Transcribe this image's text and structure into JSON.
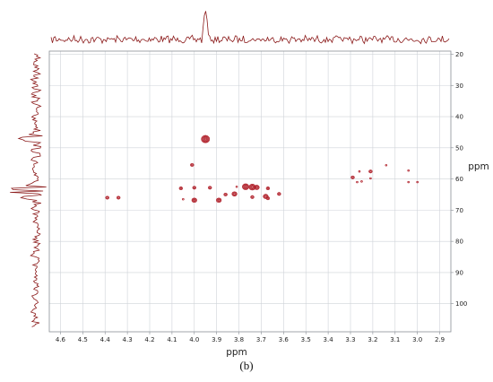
{
  "caption": "(b)",
  "colors": {
    "contour": "#b0202a",
    "trace": "#8b1a1a",
    "grid": "#cfd3d8",
    "frame": "#8a8f96",
    "text": "#222222"
  },
  "chart_data": {
    "type": "scatter",
    "title": "",
    "xlabel": "ppm",
    "ylabel": "ppm",
    "xlim": [
      4.65,
      2.85
    ],
    "ylim": [
      19,
      109
    ],
    "x_ticks": [
      4.6,
      4.5,
      4.4,
      4.3,
      4.2,
      4.1,
      4.0,
      3.9,
      3.8,
      3.7,
      3.6,
      3.5,
      3.4,
      3.3,
      3.2,
      3.1,
      3.0,
      2.9
    ],
    "x_tick_labels": [
      "4.6",
      "4.5",
      "4.4",
      "4.3",
      "4.2",
      "4.1",
      "4.0",
      "3.9",
      "3.8",
      "3.7",
      "3.6",
      "3.5",
      "3.4",
      "3.3",
      "3.2",
      "3.1",
      "3.0",
      "2.9"
    ],
    "y_ticks": [
      20,
      30,
      40,
      50,
      60,
      70,
      80,
      90,
      100
    ],
    "y_tick_labels": [
      "20",
      "30",
      "40",
      "50",
      "60",
      "70",
      "80",
      "90",
      "100"
    ],
    "grid": true,
    "axis_orientation": "x decreasing left-to-right; y increasing downward; y tick labels on right",
    "top_projection": {
      "baseline_label": "",
      "main_peak_x": 3.95
    },
    "left_projection": {
      "main_peaks_y": [
        47,
        63,
        65
      ]
    },
    "peaks": [
      {
        "x": 3.95,
        "y": 47.2,
        "intensity": 4
      },
      {
        "x": 4.01,
        "y": 55.5,
        "intensity": 1
      },
      {
        "x": 4.39,
        "y": 66.0,
        "intensity": 1
      },
      {
        "x": 4.34,
        "y": 66.0,
        "intensity": 1
      },
      {
        "x": 4.06,
        "y": 63.0,
        "intensity": 1
      },
      {
        "x": 4.05,
        "y": 66.5,
        "intensity": 0
      },
      {
        "x": 4.0,
        "y": 62.8,
        "intensity": 1
      },
      {
        "x": 4.0,
        "y": 66.8,
        "intensity": 2
      },
      {
        "x": 3.93,
        "y": 62.8,
        "intensity": 1
      },
      {
        "x": 3.89,
        "y": 66.8,
        "intensity": 2
      },
      {
        "x": 3.86,
        "y": 65.0,
        "intensity": 1
      },
      {
        "x": 3.82,
        "y": 64.8,
        "intensity": 2
      },
      {
        "x": 3.81,
        "y": 62.5,
        "intensity": 0
      },
      {
        "x": 3.77,
        "y": 62.5,
        "intensity": 3
      },
      {
        "x": 3.74,
        "y": 62.6,
        "intensity": 3
      },
      {
        "x": 3.72,
        "y": 62.7,
        "intensity": 2
      },
      {
        "x": 3.74,
        "y": 65.8,
        "intensity": 1
      },
      {
        "x": 3.67,
        "y": 63.0,
        "intensity": 1
      },
      {
        "x": 3.68,
        "y": 65.6,
        "intensity": 2
      },
      {
        "x": 3.67,
        "y": 66.2,
        "intensity": 1
      },
      {
        "x": 3.62,
        "y": 64.8,
        "intensity": 1
      },
      {
        "x": 3.29,
        "y": 59.5,
        "intensity": 1
      },
      {
        "x": 3.27,
        "y": 61.0,
        "intensity": 0
      },
      {
        "x": 3.26,
        "y": 57.6,
        "intensity": 0
      },
      {
        "x": 3.25,
        "y": 60.8,
        "intensity": 0
      },
      {
        "x": 3.21,
        "y": 57.6,
        "intensity": 1
      },
      {
        "x": 3.21,
        "y": 59.8,
        "intensity": 0
      },
      {
        "x": 3.14,
        "y": 55.6,
        "intensity": 0
      },
      {
        "x": 3.04,
        "y": 57.3,
        "intensity": 0
      },
      {
        "x": 3.04,
        "y": 61.0,
        "intensity": 0
      },
      {
        "x": 3.0,
        "y": 61.0,
        "intensity": 0
      }
    ]
  }
}
